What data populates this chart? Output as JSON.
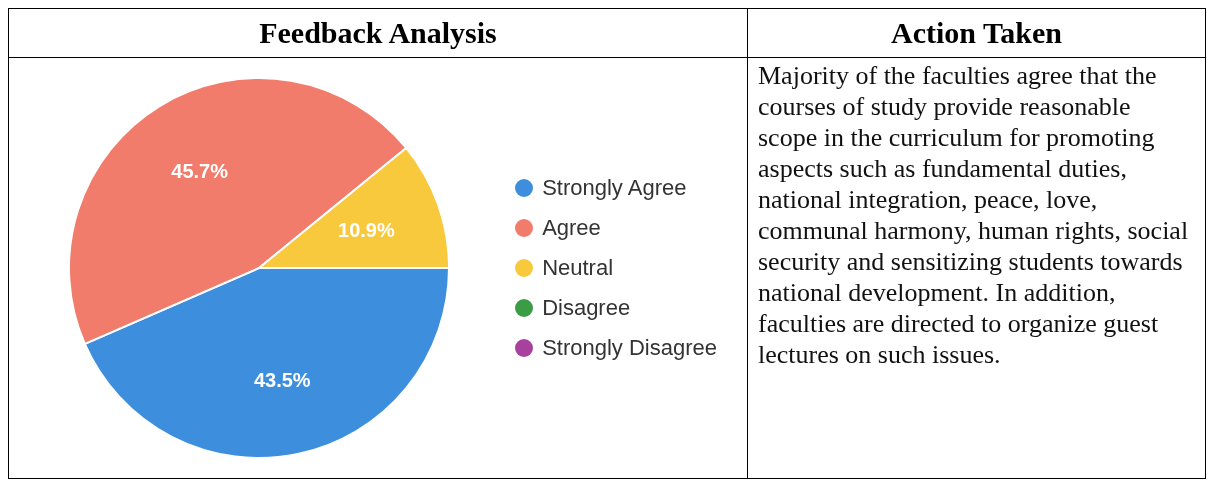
{
  "chart_data": [
    {
      "type": "pie",
      "title": "Feedback Analysis",
      "categories": [
        "Strongly Agree",
        "Agree",
        "Neutral",
        "Disagree",
        "Strongly Disagree"
      ],
      "values": [
        43.5,
        45.7,
        10.9,
        0,
        0
      ],
      "colors": [
        "#3d8fde",
        "#f27c6c",
        "#f8c93c",
        "#3b9c46",
        "#a8409e"
      ],
      "value_labels": [
        "43.5%",
        "45.7%",
        "10.9%",
        null,
        null
      ],
      "legend": "right"
    },
    {
      "type": "other",
      "title": "Action Taken",
      "annotations": [
        "Majority of the faculties agree that the courses of study provide reasonable scope in the curriculum for promoting aspects such as fundamental duties, national integration, peace, love, communal harmony, human rights, social security and sensitizing students towards national development. In addition, faculties are directed to organize guest lectures on such issues."
      ]
    }
  ]
}
